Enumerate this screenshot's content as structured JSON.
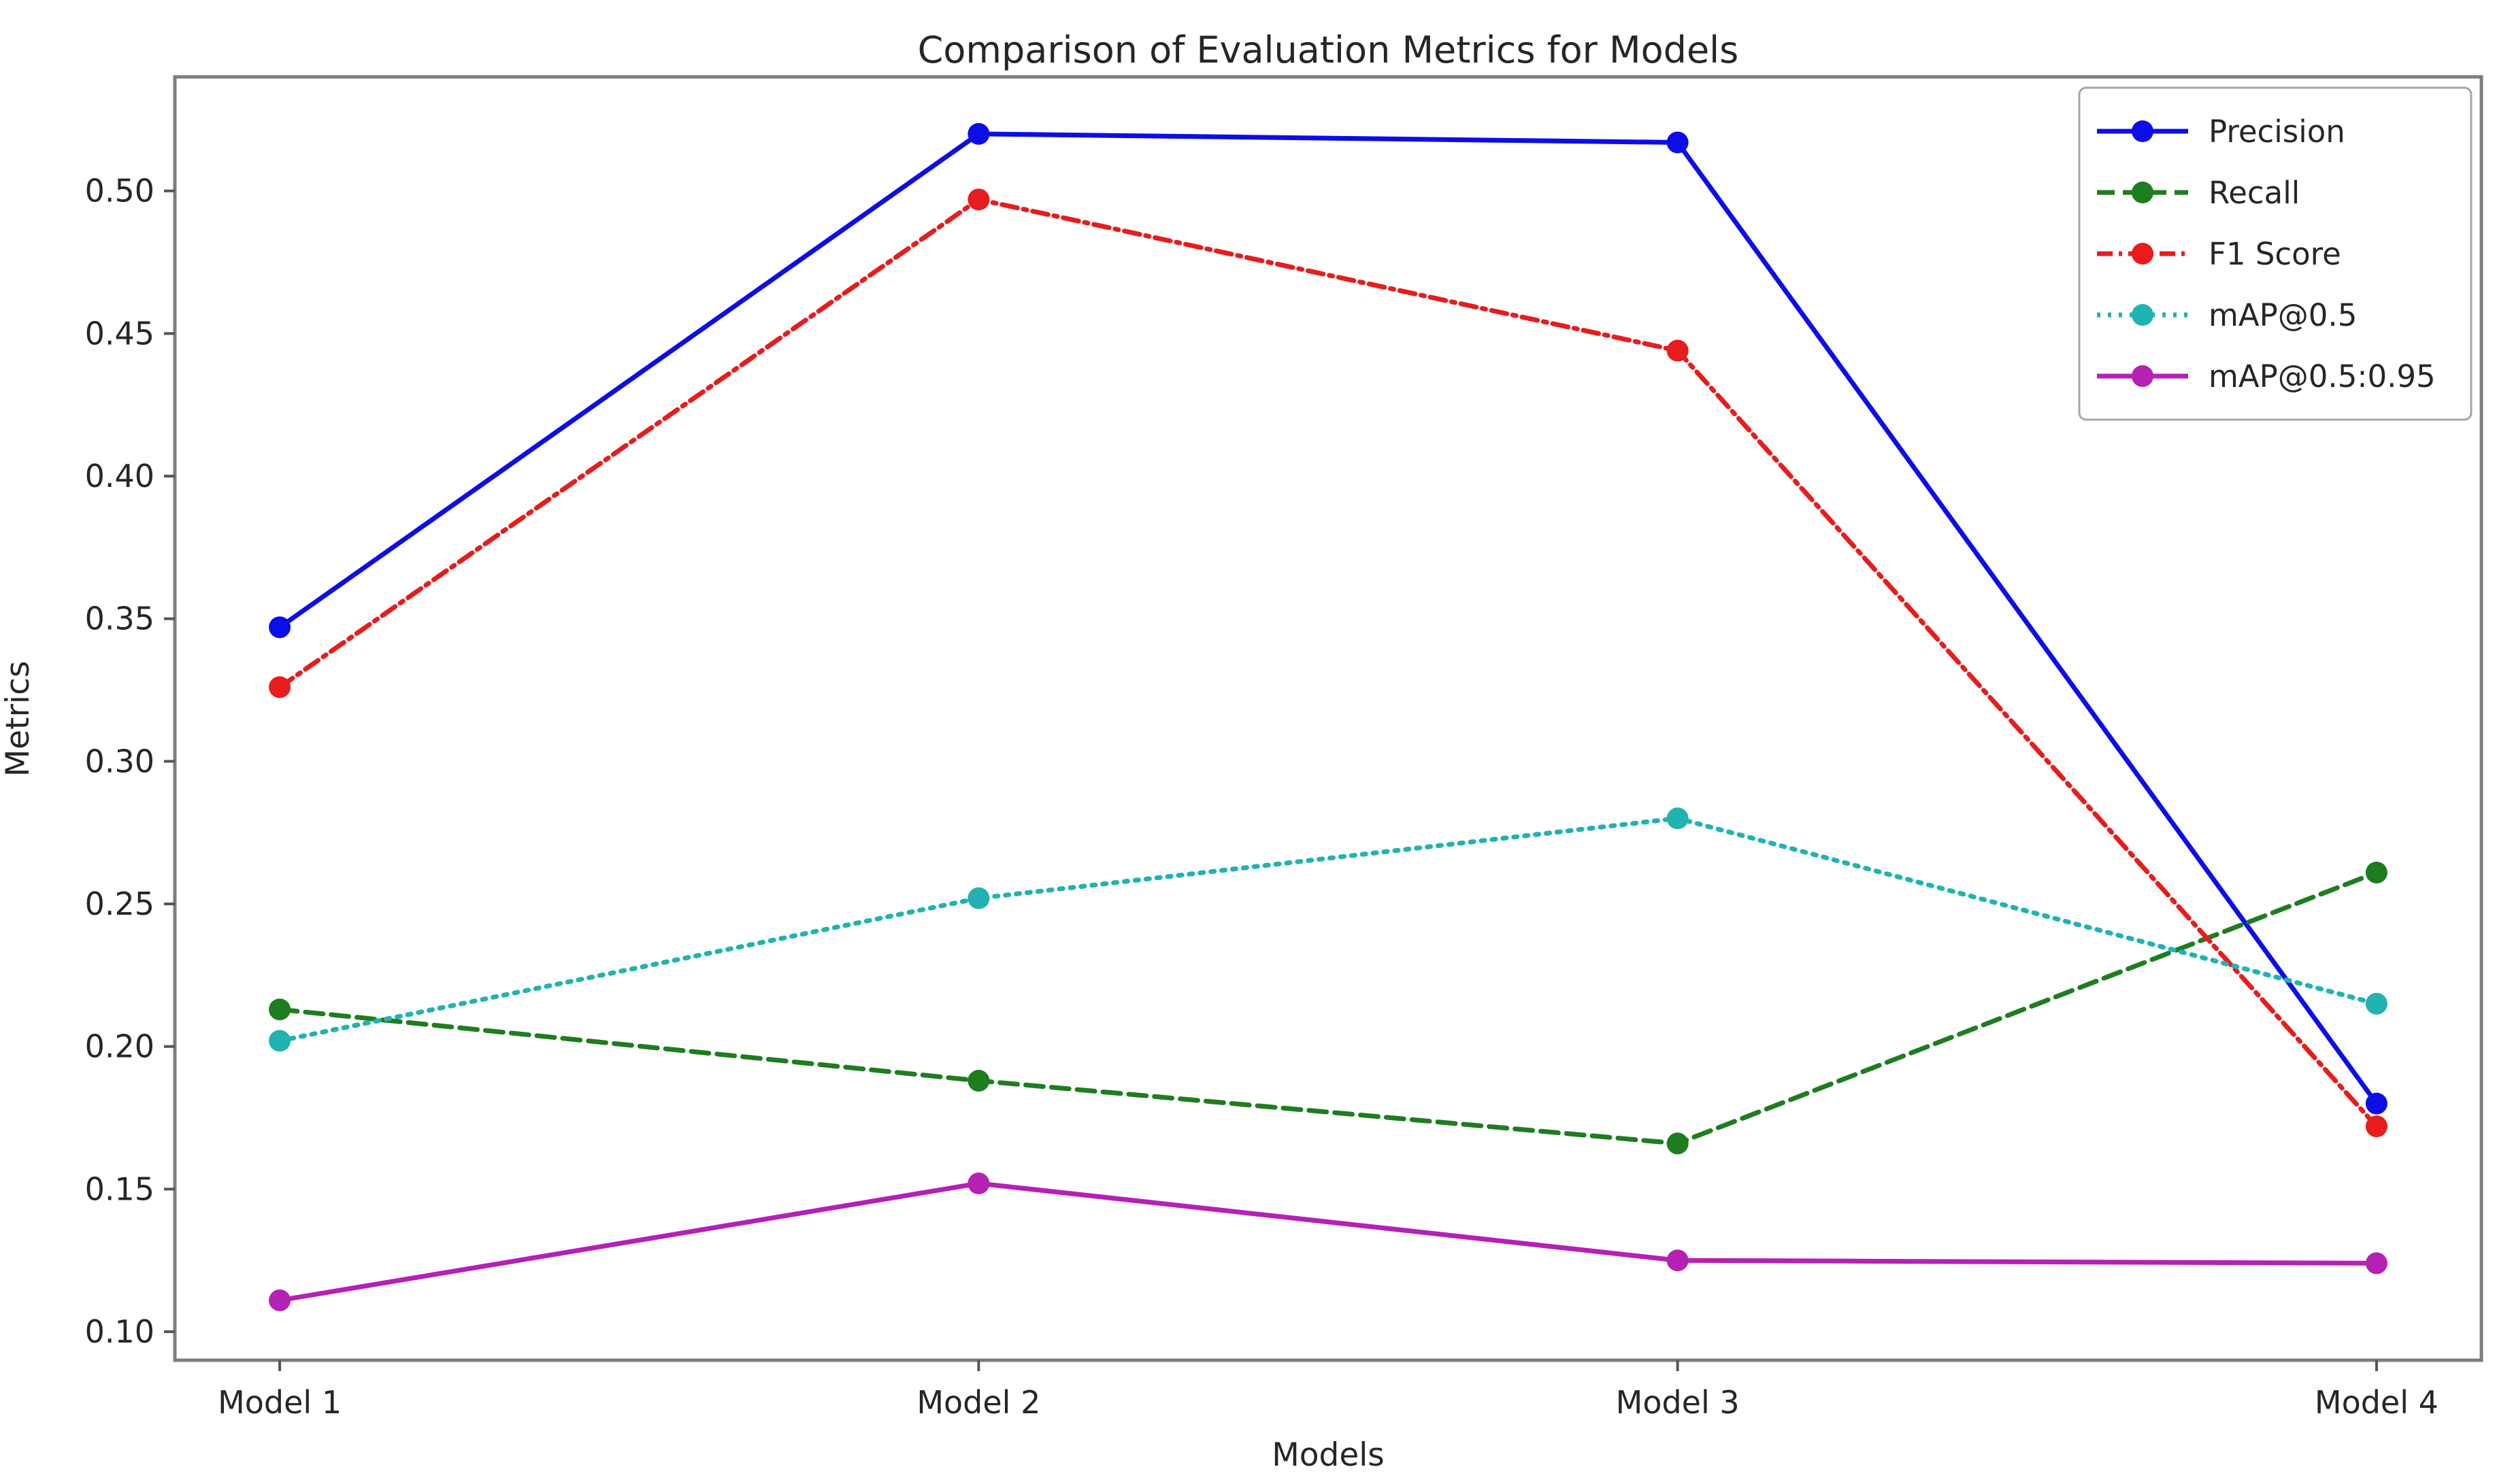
{
  "figure": {
    "title": "Comparison of Evaluation Metrics for Models",
    "xlabel": "Models",
    "ylabel": "Metrics"
  },
  "chart_data": {
    "type": "line",
    "title": "Comparison of Evaluation Metrics for Models",
    "xlabel": "Models",
    "ylabel": "Metrics",
    "categories": [
      "Model 1",
      "Model 2",
      "Model 3",
      "Model 4"
    ],
    "series": [
      {
        "name": "Precision",
        "color": "#0d0de8",
        "linestyle": "solid",
        "marker": "circle",
        "values": [
          0.347,
          0.52,
          0.517,
          0.18
        ]
      },
      {
        "name": "Recall",
        "color": "#1e7d1e",
        "linestyle": "dashed",
        "marker": "circle",
        "values": [
          0.213,
          0.188,
          0.166,
          0.261
        ]
      },
      {
        "name": "F1 Score",
        "color": "#e81c1c",
        "linestyle": "dashdot",
        "marker": "circle",
        "values": [
          0.326,
          0.497,
          0.444,
          0.172
        ]
      },
      {
        "name": "mAP@0.5",
        "color": "#21b2b2",
        "linestyle": "dotted",
        "marker": "circle",
        "values": [
          0.202,
          0.252,
          0.28,
          0.215
        ]
      },
      {
        "name": "mAP@0.5:0.95",
        "color": "#b520b5",
        "linestyle": "solid",
        "marker": "circle",
        "values": [
          0.111,
          0.152,
          0.125,
          0.124
        ]
      }
    ],
    "yticks": [
      0.1,
      0.15,
      0.2,
      0.25,
      0.3,
      0.35,
      0.4,
      0.45,
      0.5
    ],
    "ytick_labels": [
      "0.10",
      "0.15",
      "0.20",
      "0.25",
      "0.30",
      "0.35",
      "0.40",
      "0.45",
      "0.50"
    ],
    "ylim": [
      0.09,
      0.54
    ],
    "grid": false,
    "legend_position": "upper right",
    "spine_color": "#7d7d7d",
    "text_color": "#262626",
    "background_color": "#ffffff"
  }
}
